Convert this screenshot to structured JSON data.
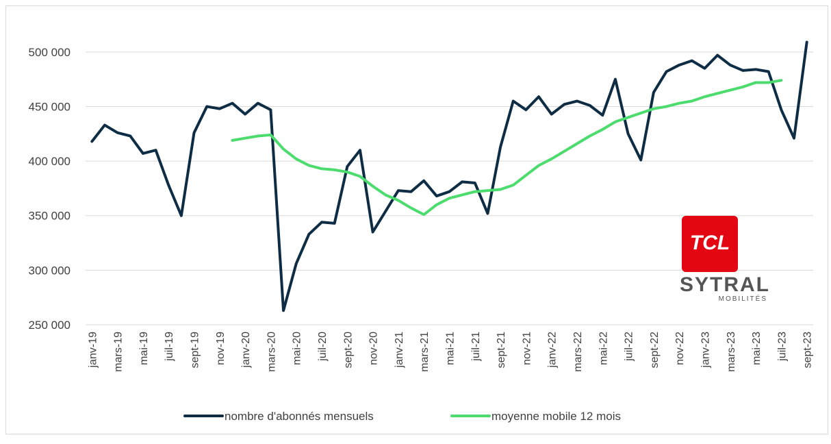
{
  "chart_data": {
    "type": "line",
    "categories": [
      "janv-19",
      null,
      "mars-19",
      null,
      "mai-19",
      null,
      "juil-19",
      null,
      "sept-19",
      null,
      "nov-19",
      null,
      "janv-20",
      null,
      "mars-20",
      null,
      "mai-20",
      null,
      "juil-20",
      null,
      "sept-20",
      null,
      "nov-20",
      null,
      "janv-21",
      null,
      "mars-21",
      null,
      "mai-21",
      null,
      "juil-21",
      null,
      "sept-21",
      null,
      "nov-21",
      null,
      "janv-22",
      null,
      "mars-22",
      null,
      "mai-22",
      null,
      "juil-22",
      null,
      "sept-22",
      null,
      "nov-22",
      null,
      "janv-23",
      null,
      "mars-23",
      null,
      "mai-23",
      null,
      "juil-23",
      null,
      "sept-23"
    ],
    "series": [
      {
        "name": "nombre d'abonnés mensuels",
        "color": "#0e2d45",
        "values": [
          418000,
          433000,
          426000,
          423000,
          407000,
          410000,
          378000,
          350000,
          426000,
          450000,
          448000,
          453000,
          443000,
          453000,
          447000,
          263000,
          306000,
          333000,
          344000,
          343000,
          395000,
          410000,
          335000,
          354000,
          373000,
          372000,
          382000,
          368000,
          372000,
          381000,
          380000,
          352000,
          413000,
          455000,
          447000,
          459000,
          443000,
          452000,
          455000,
          451000,
          442000,
          475000,
          425000,
          401000,
          463000,
          482000,
          488000,
          492000,
          485000,
          497000,
          488000,
          483000,
          484000,
          482000,
          447000,
          421000,
          509000
        ]
      },
      {
        "name": "moyenne mobile 12 mois",
        "color": "#4cdc6e",
        "values": [
          null,
          null,
          null,
          null,
          null,
          null,
          null,
          null,
          null,
          null,
          null,
          419000,
          421000,
          423000,
          424000,
          411000,
          402000,
          396000,
          393000,
          392000,
          390000,
          386000,
          377000,
          369000,
          364000,
          357000,
          351000,
          360000,
          366000,
          369000,
          372000,
          373000,
          374000,
          378000,
          387000,
          396000,
          402000,
          409000,
          416000,
          423000,
          429000,
          436000,
          440000,
          444000,
          448000,
          450000,
          453000,
          455000,
          459000,
          462000,
          465000,
          468000,
          472000,
          472000,
          474000,
          null,
          null
        ]
      }
    ],
    "ylim": [
      250000,
      520000
    ],
    "yticks": [
      {
        "value": 250000,
        "label": "250 000"
      },
      {
        "value": 300000,
        "label": "300 000"
      },
      {
        "value": 350000,
        "label": "350 000"
      },
      {
        "value": 400000,
        "label": "400 000"
      },
      {
        "value": 450000,
        "label": "450 000"
      },
      {
        "value": 500000,
        "label": "500 000"
      }
    ],
    "grid": true,
    "legend": "bottom",
    "logo": {
      "badge": "TCL",
      "text": "SYTRAL",
      "subtext": "MOBILITÉS"
    }
  }
}
